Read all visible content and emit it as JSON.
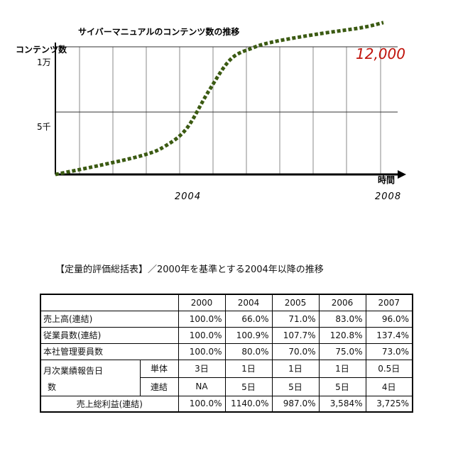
{
  "chart_data": {
    "type": "line",
    "title": "サイバーマニュアルのコンテンツ数の推移",
    "ylabel": "コンテンツ数",
    "xlabel": "時間",
    "y_tick_labels": [
      "1万",
      "5千"
    ],
    "x_tick_labels": [
      "2004",
      "2008"
    ],
    "annotation": "12,000",
    "grid": true,
    "series": [
      {
        "style": "dotted",
        "color": "#3b5a12",
        "points": [
          {
            "x": 2001.0,
            "y": 0
          },
          {
            "x": 2002.0,
            "y": 700
          },
          {
            "x": 2003.0,
            "y": 1500
          },
          {
            "x": 2003.5,
            "y": 2200
          },
          {
            "x": 2004.0,
            "y": 3600
          },
          {
            "x": 2004.5,
            "y": 6500
          },
          {
            "x": 2005.0,
            "y": 9000
          },
          {
            "x": 2005.5,
            "y": 9900
          },
          {
            "x": 2006.0,
            "y": 10400
          },
          {
            "x": 2007.0,
            "y": 11000
          },
          {
            "x": 2008.0,
            "y": 11500
          },
          {
            "x": 2008.5,
            "y": 11900
          }
        ]
      }
    ]
  },
  "table": {
    "title": "【定量的評価総括表】／2000年を基準とする2004年以降の推移",
    "years": [
      "2000",
      "2004",
      "2005",
      "2006",
      "2007"
    ],
    "rows": [
      {
        "label": "売上高(連結)",
        "values": [
          "100.0%",
          "66.0%",
          "71.0%",
          "83.0%",
          "96.0%"
        ]
      },
      {
        "label": "従業員数(連結)",
        "values": [
          "100.0%",
          "100.9%",
          "107.7%",
          "120.8%",
          "137.4%"
        ]
      },
      {
        "label": "本社管理要員数",
        "values": [
          "100.0%",
          "80.0%",
          "70.0%",
          "75.0%",
          "73.0%"
        ]
      }
    ],
    "report_label_line1": "月次業績報告日",
    "report_label_line2": "数",
    "report_rows": [
      {
        "sub": "単体",
        "values": [
          "3日",
          "1日",
          "1日",
          "1日",
          "0.5日"
        ]
      },
      {
        "sub": "連結",
        "values": [
          "NA",
          "5日",
          "5日",
          "5日",
          "4日"
        ]
      }
    ],
    "gross_profit": {
      "label": "売上総利益(連結)",
      "values": [
        "100.0%",
        "1140.0%",
        "987.0%",
        "3,584%",
        "3,725%"
      ]
    }
  }
}
